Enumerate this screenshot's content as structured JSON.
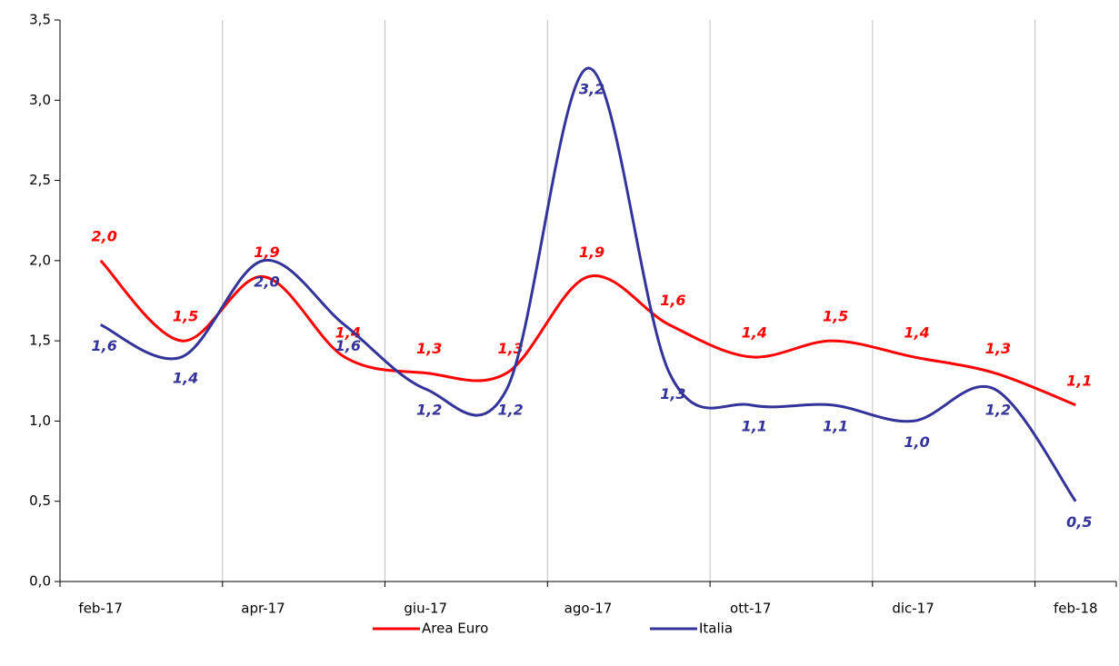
{
  "chart_data": {
    "type": "line",
    "categories": [
      "feb-17",
      null,
      "apr-17",
      null,
      "giu-17",
      null,
      "ago-17",
      null,
      "ott-17",
      null,
      "dic-17",
      null,
      "feb-18"
    ],
    "series": [
      {
        "name": "Area Euro",
        "color": "#ff0000",
        "values": [
          2.0,
          1.5,
          1.9,
          1.4,
          1.3,
          1.3,
          1.9,
          1.6,
          1.4,
          1.5,
          1.4,
          1.3,
          1.1
        ],
        "value_labels": [
          "2,0",
          "1,5",
          "1,9",
          "1,4",
          "1,3",
          "1,3",
          "1,9",
          "1,6",
          "1,4",
          "1,5",
          "1,4",
          "1,3",
          "1,1"
        ]
      },
      {
        "name": "Italia",
        "color": "#333399",
        "values": [
          1.6,
          1.4,
          2.0,
          1.6,
          1.2,
          1.2,
          3.2,
          1.3,
          1.1,
          1.1,
          1.0,
          1.2,
          0.5
        ],
        "value_labels": [
          "1,6",
          "1,4",
          "2,0",
          "1,6",
          "1,2",
          "1,2",
          "3,2",
          "1,3",
          "1,1",
          "1,1",
          "1,0",
          "1,2",
          "0,5"
        ]
      }
    ],
    "ylim": [
      0,
      3.5
    ],
    "yticks": [
      {
        "value": 0,
        "label": "0,0"
      },
      {
        "value": 0.5,
        "label": "0,5"
      },
      {
        "value": 1,
        "label": "1,0"
      },
      {
        "value": 1.5,
        "label": "1,5"
      },
      {
        "value": 2,
        "label": "2,0"
      },
      {
        "value": 2.5,
        "label": "2,5"
      },
      {
        "value": 3,
        "label": "3,0"
      },
      {
        "value": 3.5,
        "label": "3,5"
      }
    ],
    "grid": true,
    "legend": "bottom"
  }
}
